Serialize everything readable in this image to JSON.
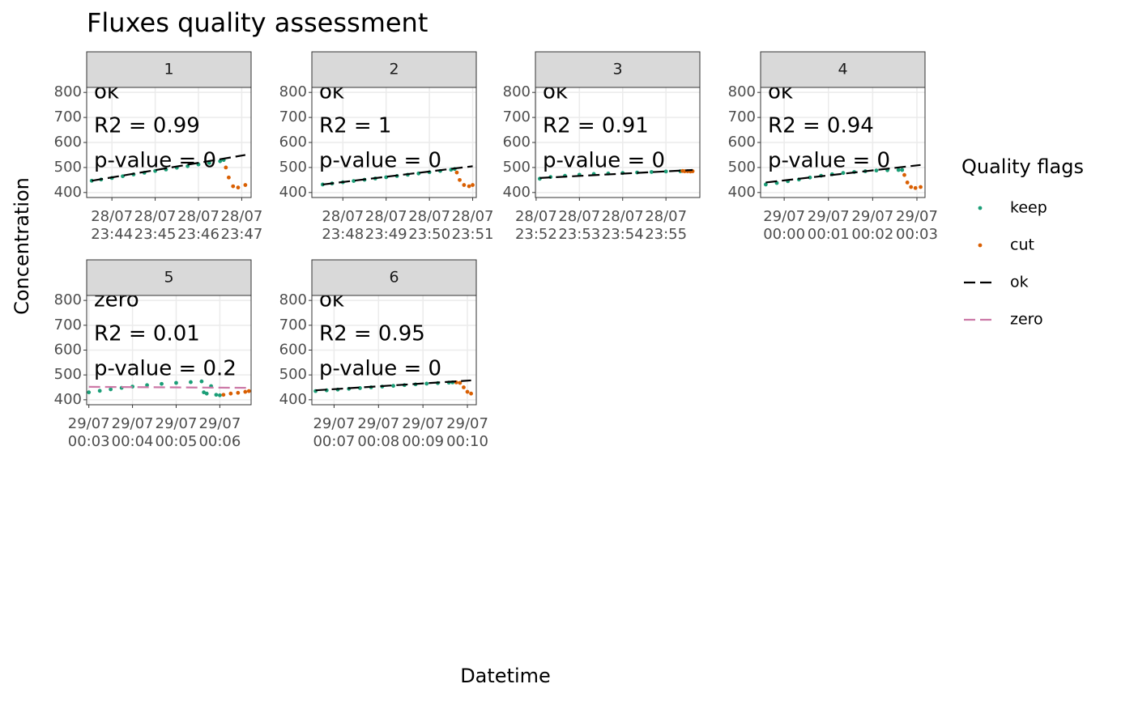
{
  "chart_data": {
    "type": "scatter",
    "title": "Fluxes quality assessment",
    "x_label": "Datetime",
    "y_label": "Concentration",
    "legend_title": "Quality flags",
    "legend": [
      {
        "name": "keep",
        "color": "#1b9e77",
        "shape": "point"
      },
      {
        "name": "cut",
        "color": "#d95f02",
        "shape": "point"
      },
      {
        "name": "ok",
        "color": "#000000",
        "shape": "dashed"
      },
      {
        "name": "zero",
        "color": "#cc79a7",
        "shape": "dashed"
      }
    ],
    "grid": true,
    "ylim": [
      380,
      820
    ],
    "yticks": [
      400,
      500,
      600,
      700,
      800
    ],
    "panels": [
      {
        "strip": "1",
        "flag": "ok",
        "r2_label": "R2 = 0.99",
        "p_label": "p-value = 0",
        "xlim": [
          "28/07 23:43:25",
          "28/07 23:47:13"
        ],
        "xticks": [
          {
            "value": "28/07 23:44",
            "label": "28/07\n23:44"
          },
          {
            "value": "28/07 23:45",
            "label": "28/07\n23:45"
          },
          {
            "value": "28/07 23:46",
            "label": "28/07\n23:46"
          },
          {
            "value": "28/07 23:47",
            "label": "28/07\n23:47"
          }
        ],
        "series": [
          {
            "name": "keep",
            "color": "#1b9e77",
            "x": [
              "28/07 23:43:32",
              "28/07 23:43:45",
              "28/07 23:44:00",
              "28/07 23:44:15",
              "28/07 23:44:30",
              "28/07 23:44:45",
              "28/07 23:45:00",
              "28/07 23:45:15",
              "28/07 23:45:30",
              "28/07 23:45:45",
              "28/07 23:46:00",
              "28/07 23:46:15",
              "28/07 23:46:30",
              "28/07 23:46:35"
            ],
            "values": [
              447,
              452,
              458,
              465,
              472,
              479,
              486,
              492,
              499,
              505,
              512,
              518,
              525,
              530
            ]
          },
          {
            "name": "cut",
            "color": "#d95f02",
            "x": [
              "28/07 23:46:38",
              "28/07 23:46:42",
              "28/07 23:46:48",
              "28/07 23:46:55",
              "28/07 23:47:05"
            ],
            "values": [
              500,
              460,
              425,
              420,
              430
            ]
          },
          {
            "name": "ok",
            "color": "#000000",
            "x": [
              "28/07 23:43:32",
              "28/07 23:47:05"
            ],
            "values": [
              447,
              550
            ]
          }
        ]
      },
      {
        "strip": "2",
        "flag": "ok",
        "r2_label": "R2 = 1",
        "p_label": "p-value = 0",
        "xlim": [
          "28/07 23:47:17",
          "28/07 23:51:05"
        ],
        "xticks": [
          {
            "value": "28/07 23:48",
            "label": "28/07\n23:48"
          },
          {
            "value": "28/07 23:49",
            "label": "28/07\n23:49"
          },
          {
            "value": "28/07 23:50",
            "label": "28/07\n23:50"
          },
          {
            "value": "28/07 23:51",
            "label": "28/07\n23:51"
          }
        ],
        "series": [
          {
            "name": "keep",
            "color": "#1b9e77",
            "x": [
              "28/07 23:47:32",
              "28/07 23:47:45",
              "28/07 23:48:00",
              "28/07 23:48:15",
              "28/07 23:48:30",
              "28/07 23:48:45",
              "28/07 23:49:00",
              "28/07 23:49:15",
              "28/07 23:49:30",
              "28/07 23:49:45",
              "28/07 23:50:00",
              "28/07 23:50:15",
              "28/07 23:50:30",
              "28/07 23:50:35"
            ],
            "values": [
              432,
              436,
              441,
              446,
              451,
              456,
              461,
              466,
              471,
              476,
              481,
              486,
              491,
              494
            ]
          },
          {
            "name": "cut",
            "color": "#d95f02",
            "x": [
              "28/07 23:50:38",
              "28/07 23:50:42",
              "28/07 23:50:48",
              "28/07 23:50:55",
              "28/07 23:51:00"
            ],
            "values": [
              480,
              450,
              430,
              425,
              430
            ]
          },
          {
            "name": "ok",
            "color": "#000000",
            "x": [
              "28/07 23:47:32",
              "28/07 23:51:00"
            ],
            "values": [
              432,
              505
            ]
          }
        ]
      },
      {
        "strip": "3",
        "flag": "ok",
        "r2_label": "R2 = 0.91",
        "p_label": "p-value = 0",
        "xlim": [
          "28/07 23:51:59",
          "28/07 23:55:47"
        ],
        "xticks": [
          {
            "value": "28/07 23:52",
            "label": "28/07\n23:52"
          },
          {
            "value": "28/07 23:53",
            "label": "28/07\n23:53"
          },
          {
            "value": "28/07 23:54",
            "label": "28/07\n23:54"
          },
          {
            "value": "28/07 23:55",
            "label": "28/07\n23:55"
          }
        ],
        "series": [
          {
            "name": "keep",
            "color": "#1b9e77",
            "x": [
              "28/07 23:52:05",
              "28/07 23:52:20",
              "28/07 23:52:40",
              "28/07 23:53:00",
              "28/07 23:53:20",
              "28/07 23:53:40",
              "28/07 23:54:00",
              "28/07 23:54:20",
              "28/07 23:54:40",
              "28/07 23:55:00",
              "28/07 23:55:20"
            ],
            "values": [
              455,
              462,
              467,
              471,
              474,
              476,
              478,
              480,
              482,
              484,
              485
            ]
          },
          {
            "name": "cut",
            "color": "#d95f02",
            "x": [
              "28/07 23:55:23",
              "28/07 23:55:26",
              "28/07 23:55:30",
              "28/07 23:55:34",
              "28/07 23:55:37"
            ],
            "values": [
              486,
              485,
              485,
              484,
              485
            ]
          },
          {
            "name": "ok",
            "color": "#000000",
            "x": [
              "28/07 23:52:05",
              "28/07 23:55:37"
            ],
            "values": [
              458,
              490
            ]
          }
        ]
      },
      {
        "strip": "4",
        "flag": "ok",
        "r2_label": "R2 = 0.94",
        "p_label": "p-value = 0",
        "xlim": [
          "28/07 23:59:28",
          "29/07 00:03:11"
        ],
        "xticks": [
          {
            "value": "29/07 00:00",
            "label": "29/07\n00:00"
          },
          {
            "value": "29/07 00:01",
            "label": "29/07\n00:01"
          },
          {
            "value": "29/07 00:02",
            "label": "29/07\n00:02"
          },
          {
            "value": "29/07 00:03",
            "label": "29/07\n00:03"
          }
        ],
        "series": [
          {
            "name": "keep",
            "color": "#1b9e77",
            "x": [
              "28/07 23:59:35",
              "28/07 23:59:50",
              "29/07 00:00:05",
              "29/07 00:00:20",
              "29/07 00:00:35",
              "29/07 00:00:50",
              "29/07 00:01:05",
              "29/07 00:01:20",
              "29/07 00:01:35",
              "29/07 00:01:50",
              "29/07 00:02:05",
              "29/07 00:02:20",
              "29/07 00:02:35",
              "29/07 00:02:40"
            ],
            "values": [
              432,
              438,
              445,
              452,
              460,
              467,
              473,
              478,
              482,
              485,
              488,
              489,
              490,
              490
            ]
          },
          {
            "name": "cut",
            "color": "#d95f02",
            "x": [
              "29/07 00:02:43",
              "29/07 00:02:47",
              "29/07 00:02:52",
              "29/07 00:02:58",
              "29/07 00:03:05"
            ],
            "values": [
              470,
              440,
              422,
              418,
              422
            ]
          },
          {
            "name": "ok",
            "color": "#000000",
            "x": [
              "28/07 23:59:35",
              "29/07 00:03:05"
            ],
            "values": [
              440,
              510
            ]
          }
        ]
      },
      {
        "strip": "5",
        "flag": "zero",
        "r2_label": "R2 = 0.01",
        "p_label": "p-value = 0.2",
        "xlim": [
          "29/07 00:02:57",
          "29/07 00:06:43"
        ],
        "xticks": [
          {
            "value": "29/07 00:03",
            "label": "29/07\n00:03"
          },
          {
            "value": "29/07 00:04",
            "label": "29/07\n00:04"
          },
          {
            "value": "29/07 00:05",
            "label": "29/07\n00:05"
          },
          {
            "value": "29/07 00:06",
            "label": "29/07\n00:06"
          }
        ],
        "series": [
          {
            "name": "keep",
            "color": "#1b9e77",
            "x": [
              "29/07 00:03:00",
              "29/07 00:03:15",
              "29/07 00:03:30",
              "29/07 00:03:45",
              "29/07 00:04:00",
              "29/07 00:04:20",
              "29/07 00:04:40",
              "29/07 00:05:00",
              "29/07 00:05:20",
              "29/07 00:05:35",
              "29/07 00:05:38",
              "29/07 00:05:42",
              "29/07 00:05:48",
              "29/07 00:05:55",
              "29/07 00:06:00"
            ],
            "values": [
              430,
              436,
              442,
              448,
              453,
              459,
              464,
              468,
              471,
              474,
              430,
              425,
              455,
              420,
              418
            ]
          },
          {
            "name": "cut",
            "color": "#d95f02",
            "x": [
              "29/07 00:06:05",
              "29/07 00:06:15",
              "29/07 00:06:25",
              "29/07 00:06:35",
              "29/07 00:06:40"
            ],
            "values": [
              420,
              425,
              428,
              432,
              435
            ]
          },
          {
            "name": "zero",
            "color": "#cc79a7",
            "x": [
              "29/07 00:03:00",
              "29/07 00:06:40"
            ],
            "values": [
              452,
              448
            ]
          }
        ]
      },
      {
        "strip": "6",
        "flag": "ok",
        "r2_label": "R2 = 0.95",
        "p_label": "p-value = 0",
        "xlim": [
          "29/07 00:06:30",
          "29/07 00:10:12"
        ],
        "xticks": [
          {
            "value": "29/07 00:07",
            "label": "29/07\n00:07"
          },
          {
            "value": "29/07 00:08",
            "label": "29/07\n00:08"
          },
          {
            "value": "29/07 00:09",
            "label": "29/07\n00:09"
          },
          {
            "value": "29/07 00:10",
            "label": "29/07\n00:10"
          }
        ],
        "series": [
          {
            "name": "keep",
            "color": "#1b9e77",
            "x": [
              "29/07 00:06:35",
              "29/07 00:06:50",
              "29/07 00:07:05",
              "29/07 00:07:20",
              "29/07 00:07:35",
              "29/07 00:07:50",
              "29/07 00:08:05",
              "29/07 00:08:20",
              "29/07 00:08:35",
              "29/07 00:08:50",
              "29/07 00:09:05",
              "29/07 00:09:20",
              "29/07 00:09:35",
              "29/07 00:09:40"
            ],
            "values": [
              435,
              438,
              441,
              444,
              447,
              450,
              453,
              456,
              459,
              462,
              465,
              467,
              469,
              470
            ]
          },
          {
            "name": "cut",
            "color": "#d95f02",
            "x": [
              "29/07 00:09:45",
              "29/07 00:09:50",
              "29/07 00:09:55",
              "29/07 00:10:00",
              "29/07 00:10:05"
            ],
            "values": [
              470,
              468,
              450,
              432,
              425
            ]
          },
          {
            "name": "ok",
            "color": "#000000",
            "x": [
              "29/07 00:06:35",
              "29/07 00:10:05"
            ],
            "values": [
              438,
              478
            ]
          }
        ]
      }
    ]
  }
}
